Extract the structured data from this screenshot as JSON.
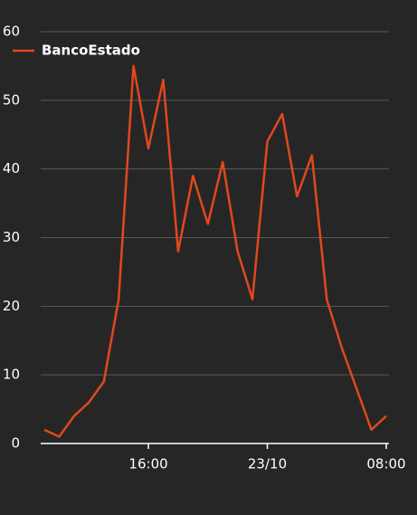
{
  "chart_data": {
    "type": "line",
    "categories": [
      null,
      null,
      null,
      null,
      null,
      null,
      null,
      "16:00",
      null,
      null,
      null,
      null,
      null,
      null,
      null,
      "23/10",
      null,
      null,
      null,
      null,
      null,
      null,
      null,
      "08:00"
    ],
    "series": [
      {
        "name": "BancoEstado",
        "color": "#e0481c",
        "values": [
          2,
          1,
          4,
          6,
          9,
          21,
          55,
          43,
          53,
          28,
          39,
          32,
          41,
          28,
          21,
          44,
          48,
          36,
          42,
          21,
          14,
          8,
          2,
          4
        ]
      }
    ],
    "ylim": [
      0,
      60
    ],
    "yticks": [
      0,
      10,
      20,
      30,
      40,
      50,
      60
    ],
    "grid": true,
    "legend": "top-left"
  }
}
